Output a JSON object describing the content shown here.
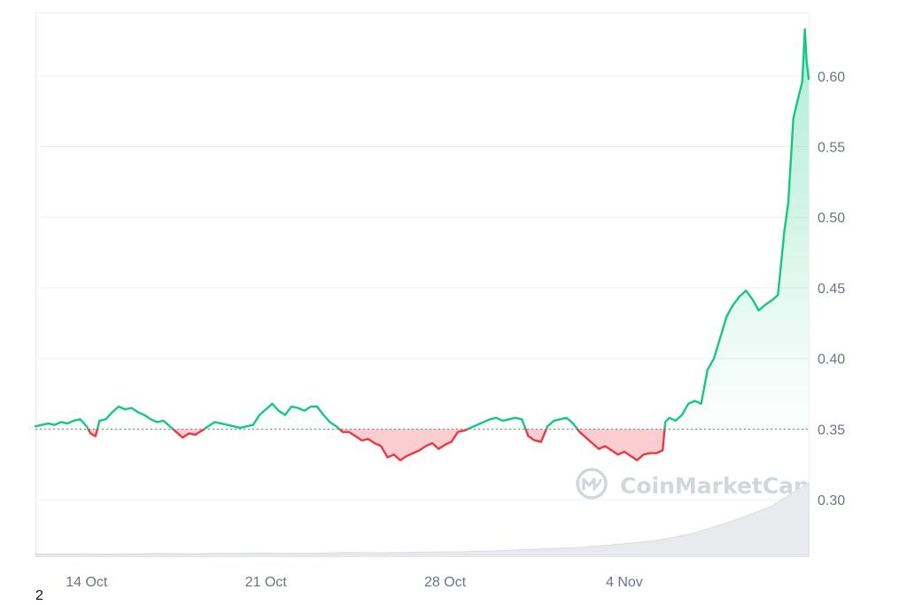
{
  "chart_data": {
    "type": "area",
    "baseline": 0.35,
    "ylim": [
      0.26,
      0.645
    ],
    "y_ticks": [
      "0.30",
      "0.35",
      "0.40",
      "0.45",
      "0.50",
      "0.55",
      "0.60"
    ],
    "x_ticks": [
      "14 Oct",
      "21 Oct",
      "28 Oct",
      "4 Nov"
    ],
    "x_range_days": [
      12.0,
      42.2
    ],
    "x_tick_days": [
      14,
      21,
      28,
      35
    ],
    "grid": true,
    "series": [
      {
        "values_by_day": [
          [
            12.0,
            0.352
          ],
          [
            12.25,
            0.353
          ],
          [
            12.5,
            0.354
          ],
          [
            12.75,
            0.353
          ],
          [
            13.0,
            0.355
          ],
          [
            13.25,
            0.354
          ],
          [
            13.5,
            0.356
          ],
          [
            13.75,
            0.357
          ],
          [
            14.0,
            0.352
          ],
          [
            14.15,
            0.347
          ],
          [
            14.35,
            0.345
          ],
          [
            14.5,
            0.356
          ],
          [
            14.75,
            0.357
          ],
          [
            15.0,
            0.362
          ],
          [
            15.25,
            0.366
          ],
          [
            15.5,
            0.364
          ],
          [
            15.75,
            0.365
          ],
          [
            16.0,
            0.362
          ],
          [
            16.25,
            0.36
          ],
          [
            16.5,
            0.357
          ],
          [
            16.75,
            0.355
          ],
          [
            17.0,
            0.356
          ],
          [
            17.25,
            0.352
          ],
          [
            17.5,
            0.348
          ],
          [
            17.75,
            0.344
          ],
          [
            18.0,
            0.347
          ],
          [
            18.25,
            0.346
          ],
          [
            18.5,
            0.349
          ],
          [
            18.75,
            0.352
          ],
          [
            19.0,
            0.355
          ],
          [
            19.25,
            0.354
          ],
          [
            19.5,
            0.353
          ],
          [
            19.75,
            0.352
          ],
          [
            20.0,
            0.351
          ],
          [
            20.25,
            0.352
          ],
          [
            20.5,
            0.353
          ],
          [
            20.75,
            0.36
          ],
          [
            21.0,
            0.364
          ],
          [
            21.25,
            0.368
          ],
          [
            21.5,
            0.363
          ],
          [
            21.75,
            0.36
          ],
          [
            22.0,
            0.366
          ],
          [
            22.25,
            0.365
          ],
          [
            22.5,
            0.363
          ],
          [
            22.75,
            0.366
          ],
          [
            23.0,
            0.366
          ],
          [
            23.25,
            0.36
          ],
          [
            23.5,
            0.355
          ],
          [
            23.75,
            0.352
          ],
          [
            24.0,
            0.348
          ],
          [
            24.25,
            0.348
          ],
          [
            24.5,
            0.345
          ],
          [
            24.75,
            0.342
          ],
          [
            25.0,
            0.343
          ],
          [
            25.25,
            0.34
          ],
          [
            25.5,
            0.338
          ],
          [
            25.75,
            0.33
          ],
          [
            26.0,
            0.332
          ],
          [
            26.25,
            0.328
          ],
          [
            26.5,
            0.331
          ],
          [
            26.75,
            0.333
          ],
          [
            27.0,
            0.335
          ],
          [
            27.25,
            0.338
          ],
          [
            27.5,
            0.34
          ],
          [
            27.75,
            0.336
          ],
          [
            28.0,
            0.339
          ],
          [
            28.25,
            0.341
          ],
          [
            28.5,
            0.348
          ],
          [
            28.75,
            0.349
          ],
          [
            29.0,
            0.351
          ],
          [
            29.25,
            0.353
          ],
          [
            29.5,
            0.355
          ],
          [
            29.75,
            0.357
          ],
          [
            30.0,
            0.358
          ],
          [
            30.25,
            0.356
          ],
          [
            30.5,
            0.357
          ],
          [
            30.75,
            0.358
          ],
          [
            31.0,
            0.357
          ],
          [
            31.25,
            0.345
          ],
          [
            31.5,
            0.342
          ],
          [
            31.75,
            0.341
          ],
          [
            32.0,
            0.352
          ],
          [
            32.25,
            0.356
          ],
          [
            32.5,
            0.357
          ],
          [
            32.75,
            0.358
          ],
          [
            33.0,
            0.354
          ],
          [
            33.25,
            0.348
          ],
          [
            33.5,
            0.344
          ],
          [
            33.75,
            0.34
          ],
          [
            34.0,
            0.336
          ],
          [
            34.25,
            0.338
          ],
          [
            34.5,
            0.335
          ],
          [
            34.75,
            0.332
          ],
          [
            35.0,
            0.334
          ],
          [
            35.25,
            0.331
          ],
          [
            35.5,
            0.328
          ],
          [
            35.75,
            0.332
          ],
          [
            36.0,
            0.333
          ],
          [
            36.25,
            0.333
          ],
          [
            36.5,
            0.335
          ],
          [
            36.6,
            0.355
          ],
          [
            36.75,
            0.358
          ],
          [
            37.0,
            0.356
          ],
          [
            37.25,
            0.36
          ],
          [
            37.5,
            0.368
          ],
          [
            37.75,
            0.37
          ],
          [
            38.0,
            0.368
          ],
          [
            38.25,
            0.392
          ],
          [
            38.5,
            0.4
          ],
          [
            38.75,
            0.415
          ],
          [
            39.0,
            0.43
          ],
          [
            39.25,
            0.438
          ],
          [
            39.5,
            0.444
          ],
          [
            39.75,
            0.448
          ],
          [
            40.0,
            0.442
          ],
          [
            40.25,
            0.434
          ],
          [
            40.5,
            0.438
          ],
          [
            40.75,
            0.441
          ],
          [
            41.0,
            0.445
          ],
          [
            41.25,
            0.49
          ],
          [
            41.4,
            0.51
          ],
          [
            41.6,
            0.57
          ],
          [
            41.8,
            0.585
          ],
          [
            41.95,
            0.596
          ],
          [
            42.05,
            0.633
          ],
          [
            42.12,
            0.61
          ],
          [
            42.2,
            0.598
          ]
        ]
      }
    ],
    "volume_values": [
      0.6,
      0.7,
      0.5,
      0.8,
      0.7,
      0.9,
      1.0,
      0.8,
      1.2,
      1.1,
      1.3,
      1.5,
      1.9,
      2.6,
      3.2,
      4.5,
      6.0,
      9.0,
      14.0,
      20.0,
      30.0
    ],
    "colors": {
      "up": "#16c784",
      "down": "#ea3943",
      "baseline": "#8a8f99",
      "grid": "#eef0f3"
    },
    "watermark": "CoinMarketCap",
    "footnote": "2"
  }
}
